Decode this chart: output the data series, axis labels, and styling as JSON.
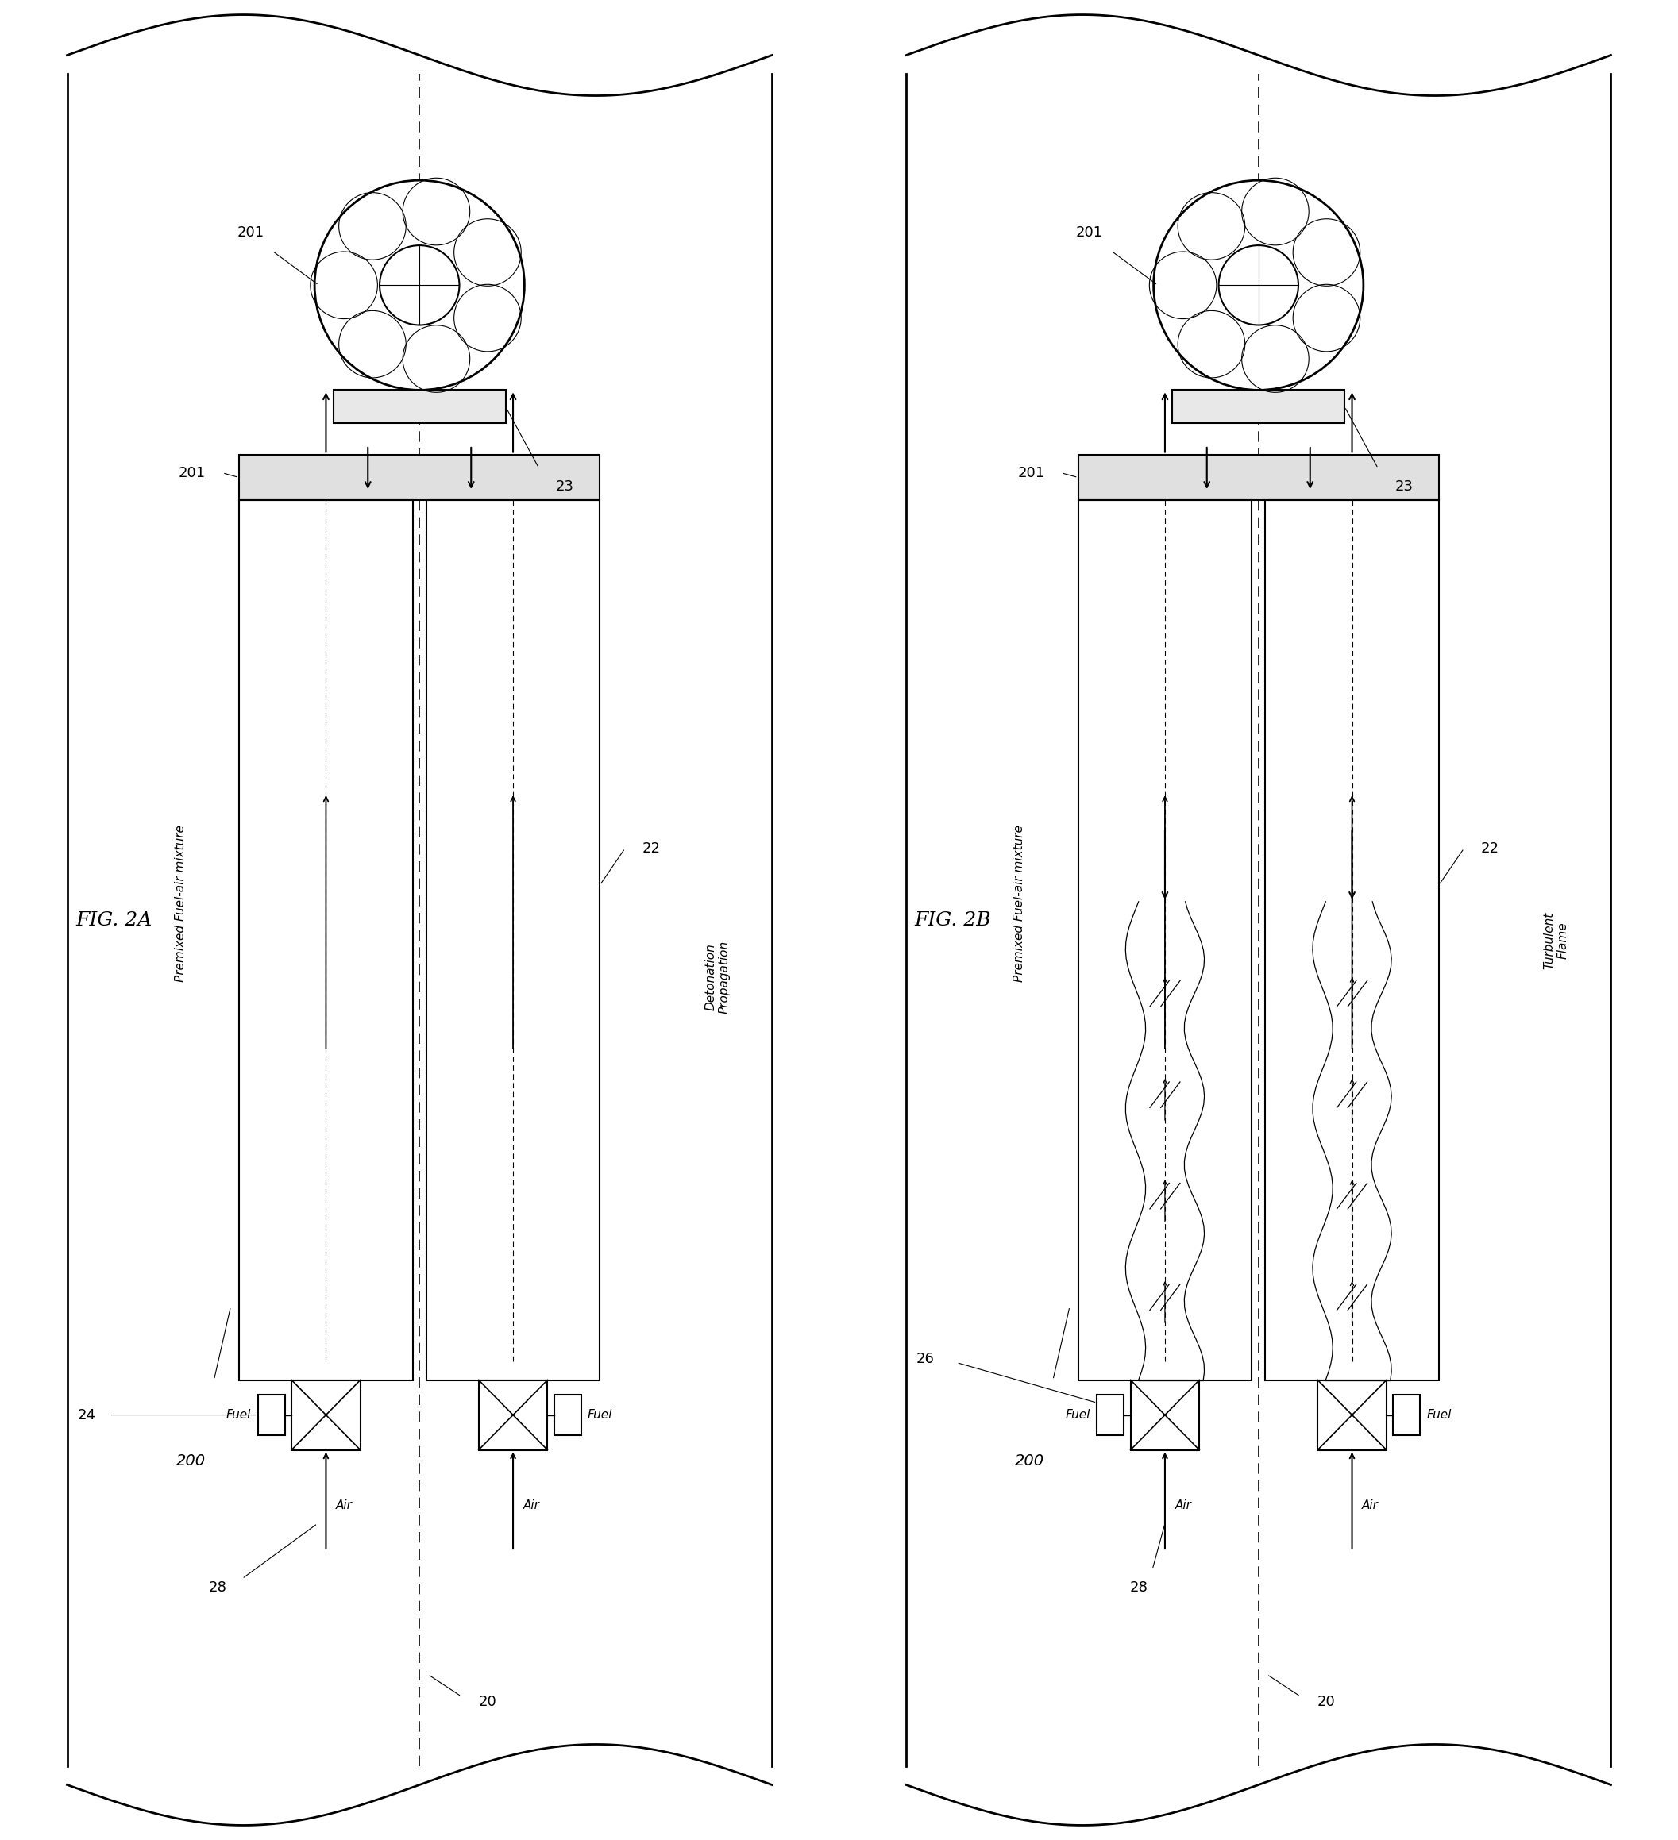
{
  "fig_width": 21.13,
  "fig_height": 23.18,
  "bg_color": "#ffffff",
  "line_color": "#000000",
  "labels": {
    "premixed": "Premixed Fuel-air mixture",
    "detonation": "Detonation\nPropagation",
    "turbulent": "Turbulent\nFlame",
    "fig_2a": "FIG. 2A",
    "fig_2b": "FIG. 2B",
    "ref_201": "201",
    "ref_22": "22",
    "ref_23": "23",
    "ref_24": "24",
    "ref_200": "200",
    "ref_20": "20",
    "ref_28": "28",
    "ref_26": "26",
    "fuel": "Fuel",
    "air": "Air"
  }
}
